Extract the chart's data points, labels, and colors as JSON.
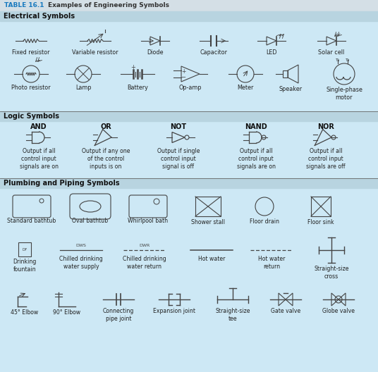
{
  "bg_color": "#cde8f5",
  "header_bg": "#c8dce8",
  "title_blue": "#1a7abf",
  "lc": "#444444",
  "tc": "#222222",
  "sec_bg": "#b8d8ea",
  "sections": [
    "Electrical Symbols",
    "Logic Symbols",
    "Plumbing and Piping Symbols"
  ],
  "title_text": "TABLE 16.1",
  "title_sub": "Examples of Engineering Symbols",
  "elec_row1_labels": [
    "Fixed resistor",
    "Variable resistor",
    "Diode",
    "Capacitor",
    "LED",
    "Solar cell"
  ],
  "elec_row2_labels": [
    "Photo resistor",
    "Lamp",
    "Battery",
    "Op-amp",
    "Meter",
    "Speaker",
    "Single-phase\nmotor"
  ],
  "logic_names": [
    "AND",
    "OR",
    "NOT",
    "NAND",
    "NOR"
  ],
  "logic_descs": [
    "Output if all\ncontrol input\nsignals are on",
    "Output if any one\nof the control\ninputs is on",
    "Output if single\ncontrol input\nsignal is off",
    "Output if all\ncontrol input\nsignals are on",
    "Output if all\ncontrol input\nsignals are off"
  ],
  "plumb_r1_labels": [
    "Standard bathtub",
    "Oval bathtub",
    "Whirlpool bath",
    "Shower stall",
    "Floor drain",
    "Floor sink"
  ],
  "plumb_r2_labels": [
    "Drinking\nfountain",
    "Chilled drinking\nwater supply",
    "Chilled drinking\nwater return",
    "Hot water",
    "Hot water\nreturn",
    "Straight-size\ncross"
  ],
  "plumb_r3_labels": [
    "45° Elbow",
    "90° Elbow",
    "Connecting\npipe joint",
    "Expansion joint",
    "Straight-size\ntee",
    "Gate valve",
    "Globe valve"
  ]
}
